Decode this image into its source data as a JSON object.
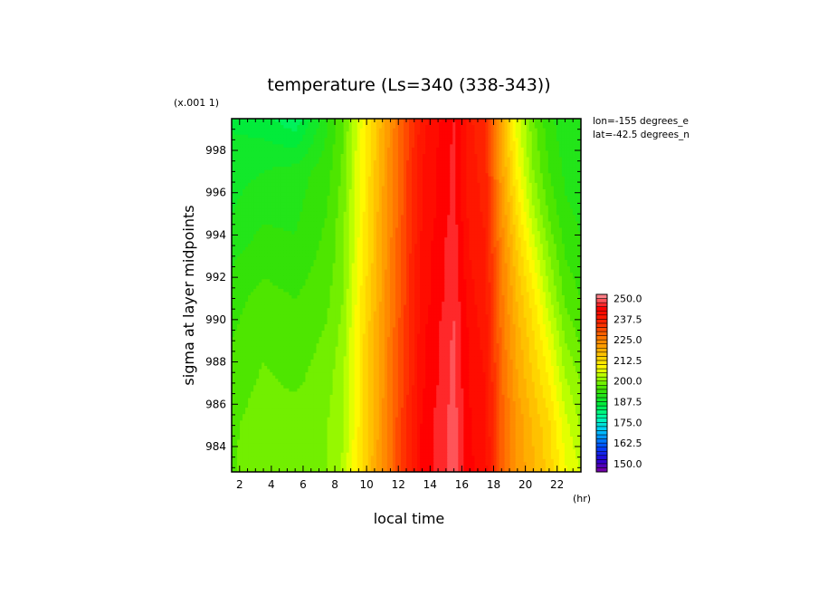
{
  "chart_data": {
    "type": "heatmap",
    "title": "temperature (Ls=340 (338-343))",
    "xlabel": "local time",
    "ylabel": "sigma at layer midpoints",
    "x_unit": "(hr)",
    "y_scale_note": "(x.001 1)",
    "annotations": [
      "lon=-155 degrees_e",
      "lat=-42.5 degrees_n"
    ],
    "xlim": [
      1.5,
      23.5
    ],
    "ylim": [
      999.5,
      982.8
    ],
    "x_ticks": [
      2,
      4,
      6,
      8,
      10,
      12,
      14,
      16,
      18,
      20,
      22
    ],
    "x_tick_labels": [
      "2",
      "4",
      "6",
      "8",
      "10",
      "12",
      "14",
      "16",
      "18",
      "20",
      "22"
    ],
    "y_ticks": [
      984,
      986,
      988,
      990,
      992,
      994,
      996,
      998
    ],
    "y_tick_labels": [
      "984",
      "986",
      "988",
      "990",
      "992",
      "994",
      "996",
      "998"
    ],
    "x": [
      1.5,
      3.5,
      5.5,
      7.5,
      8.5,
      9.5,
      10.5,
      11.5,
      12.5,
      13.5,
      14.5,
      15.5,
      16.5,
      17.5,
      18.5,
      19.5,
      20.5,
      21.5,
      22.5,
      23.5
    ],
    "y": [
      982.8,
      985,
      987,
      989,
      991,
      993,
      995,
      997,
      999.5
    ],
    "z": [
      [
        197,
        200,
        199,
        200,
        203,
        211,
        219,
        227,
        235,
        243,
        246,
        249,
        243,
        241,
        229,
        222,
        218,
        214,
        208,
        205
      ],
      [
        197,
        199,
        199,
        200,
        202,
        210,
        218,
        227,
        235,
        243,
        246,
        249,
        243,
        240,
        229,
        222,
        217,
        213,
        206,
        202
      ],
      [
        196,
        198,
        197,
        199,
        202,
        210,
        218,
        226,
        234,
        242,
        245,
        248,
        242,
        240,
        228,
        220,
        215,
        210,
        203,
        200
      ],
      [
        195,
        197,
        196,
        198,
        201,
        210,
        218,
        226,
        234,
        242,
        245,
        248,
        242,
        239,
        227,
        219,
        213,
        207,
        200,
        197
      ],
      [
        194,
        196,
        195,
        197,
        200,
        209,
        217,
        225,
        233,
        241,
        244,
        247,
        241,
        238,
        226,
        217,
        211,
        203,
        197,
        195
      ],
      [
        192,
        194,
        193,
        196,
        199,
        208,
        216,
        225,
        233,
        241,
        244,
        247,
        240,
        238,
        225,
        215,
        207,
        200,
        195,
        193
      ],
      [
        190,
        192,
        192,
        195,
        199,
        207,
        216,
        224,
        232,
        240,
        243,
        246,
        239,
        237,
        223,
        212,
        203,
        197,
        193,
        192
      ],
      [
        189,
        190,
        191,
        194,
        198,
        207,
        215,
        224,
        232,
        240,
        243,
        246,
        239,
        236,
        221,
        209,
        200,
        195,
        192,
        191
      ],
      [
        187,
        186,
        183,
        192,
        197,
        206,
        214,
        223,
        231,
        239,
        242,
        245,
        238,
        235,
        219,
        206,
        198,
        193,
        191,
        190
      ]
    ],
    "colorbar": {
      "levels": [
        250.0,
        237.5,
        225.0,
        212.5,
        200.0,
        187.5,
        175.0,
        162.5,
        150.0
      ],
      "labels": [
        "250.0",
        "237.5",
        "225.0",
        "212.5",
        "200.0",
        "187.5",
        "175.0",
        "162.5",
        "150.0"
      ],
      "range": [
        145,
        252.5
      ],
      "step": 2.5
    },
    "grid": false,
    "colorbar_placement": "right"
  }
}
